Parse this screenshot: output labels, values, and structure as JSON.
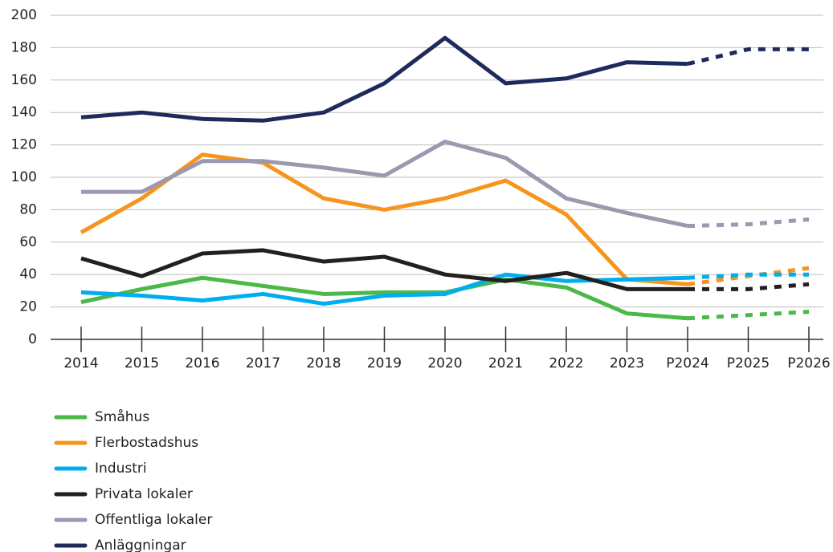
{
  "chart_data": {
    "type": "line",
    "categories": [
      "2014",
      "2015",
      "2016",
      "2017",
      "2018",
      "2019",
      "2020",
      "2021",
      "2022",
      "2023",
      "P2024",
      "P2025",
      "P2026"
    ],
    "dashed_from": "P2024",
    "series": [
      {
        "name": "Småhus",
        "color": "#4cb847",
        "values": [
          23,
          31,
          38,
          33,
          28,
          29,
          29,
          37,
          32,
          16,
          13,
          15,
          17
        ]
      },
      {
        "name": "Flerbostadshus",
        "color": "#f7941d",
        "values": [
          66,
          87,
          114,
          109,
          87,
          80,
          87,
          98,
          77,
          37,
          34,
          39,
          44
        ]
      },
      {
        "name": "Industri",
        "color": "#00aeef",
        "values": [
          29,
          27,
          24,
          28,
          22,
          27,
          28,
          40,
          36,
          37,
          38,
          40,
          40
        ]
      },
      {
        "name": "Privata lokaler",
        "color": "#231f20",
        "values": [
          50,
          39,
          53,
          55,
          48,
          51,
          40,
          36,
          41,
          31,
          31,
          31,
          34
        ]
      },
      {
        "name": "Offentliga lokaler",
        "color": "#9b98b0",
        "values": [
          91,
          91,
          110,
          110,
          106,
          101,
          122,
          112,
          87,
          78,
          70,
          71,
          74
        ]
      },
      {
        "name": "Anläggningar",
        "color": "#1f2a5c",
        "values": [
          137,
          140,
          136,
          135,
          140,
          158,
          186,
          158,
          161,
          171,
          170,
          179,
          179
        ]
      }
    ],
    "ylim": [
      0,
      200
    ],
    "yticks": [
      0,
      20,
      40,
      60,
      80,
      100,
      120,
      140,
      160,
      180,
      200
    ],
    "grid": true
  }
}
